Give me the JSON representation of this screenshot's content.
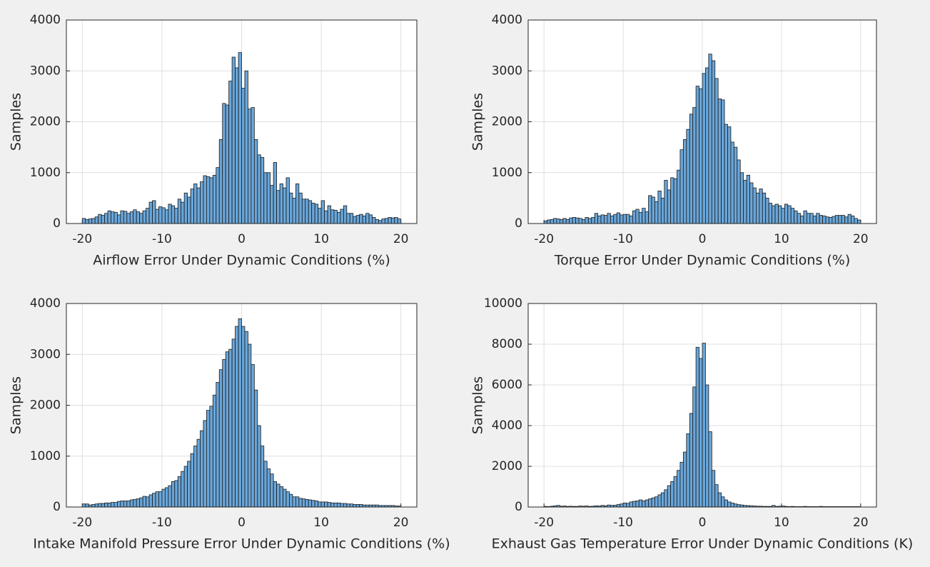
{
  "chart_data": [
    {
      "type": "histogram",
      "xlabel": "Airflow Error Under Dynamic Conditions (%)",
      "ylabel": "Samples",
      "bins": [
        -20,
        -19.6,
        -19.2,
        -18.8,
        -18.4,
        -18,
        -17.6,
        -17.2,
        -16.8,
        -16.4,
        -16,
        -15.6,
        -15.2,
        -14.8,
        -14.4,
        -14,
        -13.6,
        -13.2,
        -12.8,
        -12.4,
        -12,
        -11.6,
        -11.2,
        -10.8,
        -10.4,
        -10,
        -9.6,
        -9.2,
        -8.8,
        -8.4,
        -8,
        -7.6,
        -7.2,
        -6.8,
        -6.4,
        -6,
        -5.6,
        -5.2,
        -4.8,
        -4.4,
        -4,
        -3.6,
        -3.2,
        -2.8,
        -2.4,
        -2,
        -1.6,
        -1.2,
        -0.8,
        -0.4,
        0,
        0.4,
        0.8,
        1.2,
        1.6,
        2,
        2.4,
        2.8,
        3.2,
        3.6,
        4,
        4.4,
        4.8,
        5.2,
        5.6,
        6,
        6.4,
        6.8,
        7.2,
        7.6,
        8,
        8.4,
        8.8,
        9.2,
        9.6,
        10,
        10.4,
        10.8,
        11.2,
        11.6,
        12,
        12.4,
        12.8,
        13.2,
        13.6,
        14,
        14.4,
        14.8,
        15.2,
        15.6,
        16,
        16.4,
        16.8,
        17.2,
        17.6,
        18,
        18.4,
        18.8,
        19.2,
        19.6,
        20
      ],
      "values": [
        100,
        80,
        90,
        100,
        130,
        180,
        160,
        200,
        250,
        230,
        220,
        170,
        250,
        240,
        200,
        230,
        270,
        230,
        200,
        250,
        300,
        420,
        450,
        280,
        330,
        310,
        270,
        380,
        350,
        300,
        480,
        420,
        600,
        520,
        680,
        780,
        700,
        820,
        940,
        920,
        900,
        950,
        1100,
        1650,
        2360,
        2330,
        2800,
        3270,
        3060,
        3360,
        2660,
        3000,
        2250,
        2280,
        1650,
        1350,
        1300,
        1000,
        1000,
        750,
        1200,
        650,
        780,
        700,
        900,
        600,
        500,
        780,
        600,
        480,
        480,
        450,
        400,
        380,
        300,
        450,
        250,
        350,
        270,
        260,
        220,
        280,
        350,
        200,
        200,
        140,
        160,
        180,
        150,
        200,
        170,
        120,
        80,
        60,
        90,
        100,
        120,
        110,
        120,
        90
      ],
      "color": "#6aa6d9",
      "xlim": [
        -22,
        22
      ],
      "ylim": [
        0,
        4000
      ],
      "xticks": [
        -20,
        -10,
        0,
        10,
        20
      ],
      "yticks": [
        0,
        1000,
        2000,
        3000,
        4000
      ],
      "grid": true
    },
    {
      "type": "histogram",
      "xlabel": "Torque Error Under Dynamic Conditions (%)",
      "ylabel": "Samples",
      "bins": [
        -20,
        -19.6,
        -19.2,
        -18.8,
        -18.4,
        -18,
        -17.6,
        -17.2,
        -16.8,
        -16.4,
        -16,
        -15.6,
        -15.2,
        -14.8,
        -14.4,
        -14,
        -13.6,
        -13.2,
        -12.8,
        -12.4,
        -12,
        -11.6,
        -11.2,
        -10.8,
        -10.4,
        -10,
        -9.6,
        -9.2,
        -8.8,
        -8.4,
        -8,
        -7.6,
        -7.2,
        -6.8,
        -6.4,
        -6,
        -5.6,
        -5.2,
        -4.8,
        -4.4,
        -4,
        -3.6,
        -3.2,
        -2.8,
        -2.4,
        -2,
        -1.6,
        -1.2,
        -0.8,
        -0.4,
        0,
        0.4,
        0.8,
        1.2,
        1.6,
        2,
        2.4,
        2.8,
        3.2,
        3.6,
        4,
        4.4,
        4.8,
        5.2,
        5.6,
        6,
        6.4,
        6.8,
        7.2,
        7.6,
        8,
        8.4,
        8.8,
        9.2,
        9.6,
        10,
        10.4,
        10.8,
        11.2,
        11.6,
        12,
        12.4,
        12.8,
        13.2,
        13.6,
        14,
        14.4,
        14.8,
        15.2,
        15.6,
        16,
        16.4,
        16.8,
        17.2,
        17.6,
        18,
        18.4,
        18.8,
        19.2,
        19.6,
        20
      ],
      "values": [
        50,
        70,
        80,
        100,
        90,
        80,
        100,
        80,
        110,
        120,
        110,
        100,
        80,
        120,
        100,
        120,
        200,
        150,
        170,
        160,
        200,
        150,
        180,
        210,
        170,
        180,
        180,
        150,
        250,
        280,
        220,
        300,
        230,
        550,
        520,
        430,
        640,
        500,
        850,
        660,
        900,
        880,
        1050,
        1450,
        1650,
        1850,
        2150,
        2280,
        2700,
        2650,
        2950,
        3060,
        3330,
        3200,
        2850,
        2450,
        2430,
        1950,
        1900,
        1600,
        1500,
        1250,
        1000,
        850,
        950,
        800,
        700,
        600,
        680,
        600,
        500,
        400,
        350,
        380,
        350,
        300,
        380,
        350,
        300,
        250,
        200,
        150,
        250,
        200,
        200,
        150,
        200,
        160,
        150,
        130,
        120,
        140,
        160,
        160,
        160,
        130,
        180,
        150,
        100,
        70
      ],
      "color": "#6aa6d9",
      "xlim": [
        -22,
        22
      ],
      "ylim": [
        0,
        4000
      ],
      "xticks": [
        -20,
        -10,
        0,
        10,
        20
      ],
      "yticks": [
        0,
        1000,
        2000,
        3000,
        4000
      ],
      "grid": true
    },
    {
      "type": "histogram",
      "xlabel": "Intake Manifold Pressure Error Under Dynamic Conditions (%)",
      "ylabel": "Samples",
      "bins": [
        -20,
        -19.6,
        -19.2,
        -18.8,
        -18.4,
        -18,
        -17.6,
        -17.2,
        -16.8,
        -16.4,
        -16,
        -15.6,
        -15.2,
        -14.8,
        -14.4,
        -14,
        -13.6,
        -13.2,
        -12.8,
        -12.4,
        -12,
        -11.6,
        -11.2,
        -10.8,
        -10.4,
        -10,
        -9.6,
        -9.2,
        -8.8,
        -8.4,
        -8,
        -7.6,
        -7.2,
        -6.8,
        -6.4,
        -6,
        -5.6,
        -5.2,
        -4.8,
        -4.4,
        -4,
        -3.6,
        -3.2,
        -2.8,
        -2.4,
        -2,
        -1.6,
        -1.2,
        -0.8,
        -0.4,
        0,
        0.4,
        0.8,
        1.2,
        1.6,
        2,
        2.4,
        2.8,
        3.2,
        3.6,
        4,
        4.4,
        4.8,
        5.2,
        5.6,
        6,
        6.4,
        6.8,
        7.2,
        7.6,
        8,
        8.4,
        8.8,
        9.2,
        9.6,
        10,
        10.4,
        10.8,
        11.2,
        11.6,
        12,
        12.4,
        12.8,
        13.2,
        13.6,
        14,
        14.4,
        14.8,
        15.2,
        15.6,
        16,
        16.4,
        16.8,
        17.2,
        17.6,
        18,
        18.4,
        18.8,
        19.2,
        19.6,
        20
      ],
      "values": [
        60,
        60,
        40,
        50,
        60,
        70,
        70,
        80,
        80,
        90,
        90,
        110,
        120,
        120,
        120,
        140,
        150,
        160,
        180,
        210,
        200,
        240,
        270,
        300,
        300,
        350,
        380,
        420,
        500,
        520,
        600,
        700,
        800,
        900,
        1050,
        1200,
        1330,
        1500,
        1700,
        1900,
        1980,
        2200,
        2450,
        2700,
        2900,
        3050,
        3100,
        3300,
        3550,
        3700,
        3550,
        3450,
        3200,
        2800,
        2300,
        1600,
        1200,
        900,
        750,
        650,
        500,
        450,
        400,
        350,
        300,
        250,
        200,
        200,
        170,
        160,
        150,
        140,
        130,
        120,
        100,
        100,
        100,
        90,
        80,
        80,
        80,
        70,
        70,
        60,
        60,
        50,
        50,
        50,
        40,
        40,
        40,
        40,
        40,
        30,
        30,
        30,
        30,
        30,
        20,
        20
      ],
      "color": "#6aa6d9",
      "xlim": [
        -22,
        22
      ],
      "ylim": [
        0,
        4000
      ],
      "xticks": [
        -20,
        -10,
        0,
        10,
        20
      ],
      "yticks": [
        0,
        1000,
        2000,
        3000,
        4000
      ],
      "grid": true
    },
    {
      "type": "histogram",
      "xlabel": "Exhaust Gas Temperature Error Under Dynamic Conditions (K)",
      "ylabel": "Samples",
      "bins": [
        -20,
        -19.6,
        -19.2,
        -18.8,
        -18.4,
        -18,
        -17.6,
        -17.2,
        -16.8,
        -16.4,
        -16,
        -15.6,
        -15.2,
        -14.8,
        -14.4,
        -14,
        -13.6,
        -13.2,
        -12.8,
        -12.4,
        -12,
        -11.6,
        -11.2,
        -10.8,
        -10.4,
        -10,
        -9.6,
        -9.2,
        -8.8,
        -8.4,
        -8,
        -7.6,
        -7.2,
        -6.8,
        -6.4,
        -6,
        -5.6,
        -5.2,
        -4.8,
        -4.4,
        -4,
        -3.6,
        -3.2,
        -2.8,
        -2.4,
        -2,
        -1.6,
        -1.2,
        -0.8,
        -0.4,
        0,
        0.4,
        0.8,
        1.2,
        1.6,
        2,
        2.4,
        2.8,
        3.2,
        3.6,
        4,
        4.4,
        4.8,
        5.2,
        5.6,
        6,
        6.4,
        6.8,
        7.2,
        7.6,
        8,
        8.4,
        8.8,
        9.2,
        9.6,
        10,
        10.4,
        10.8,
        11.2,
        11.6,
        12,
        12.4,
        12.8,
        13.2,
        13.6,
        14,
        14.4,
        14.8,
        15.2,
        15.6,
        16,
        16.4,
        16.8,
        17.2,
        17.6,
        18,
        18.4,
        18.8,
        19.2,
        19.6,
        20
      ],
      "values": [
        30,
        20,
        40,
        60,
        80,
        40,
        50,
        30,
        40,
        30,
        30,
        50,
        40,
        50,
        30,
        40,
        60,
        50,
        80,
        60,
        100,
        80,
        90,
        120,
        150,
        200,
        180,
        250,
        280,
        300,
        350,
        300,
        350,
        400,
        450,
        500,
        600,
        700,
        850,
        1050,
        1250,
        1500,
        1800,
        2200,
        2700,
        3600,
        4600,
        5900,
        7850,
        7300,
        8050,
        6000,
        3700,
        1800,
        1100,
        700,
        500,
        350,
        250,
        200,
        150,
        120,
        100,
        80,
        70,
        60,
        50,
        40,
        40,
        30,
        30,
        30,
        80,
        30,
        40,
        50,
        30,
        20,
        30,
        20,
        20,
        20,
        30,
        20,
        20,
        20,
        20,
        30,
        20,
        20,
        20,
        20,
        20,
        20,
        20,
        20,
        20,
        20,
        20,
        20
      ],
      "color": "#6aa6d9",
      "xlim": [
        -22,
        22
      ],
      "ylim": [
        0,
        10000
      ],
      "xticks": [
        -20,
        -10,
        0,
        10,
        20
      ],
      "yticks": [
        0,
        2000,
        4000,
        6000,
        8000,
        10000
      ],
      "grid": true
    }
  ]
}
